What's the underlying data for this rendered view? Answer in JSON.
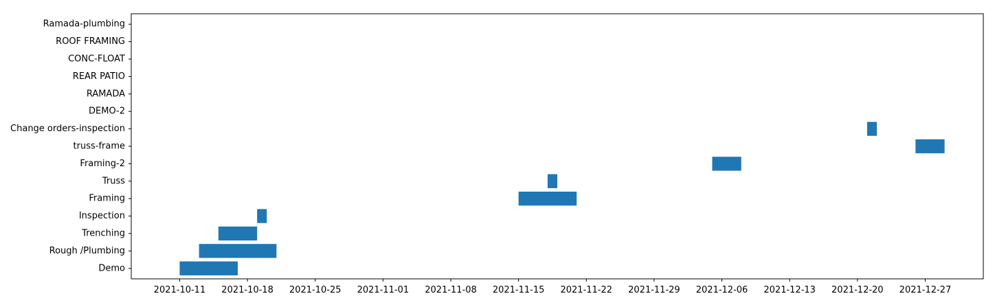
{
  "chart_data": {
    "type": "gantt",
    "title": "",
    "xlabel": "",
    "ylabel": "",
    "x_axis_type": "date",
    "xlim": [
      "2021-10-06",
      "2022-01-02"
    ],
    "x_ticks": [
      "2021-10-11",
      "2021-10-18",
      "2021-10-25",
      "2021-11-01",
      "2021-11-08",
      "2021-11-15",
      "2021-11-22",
      "2021-11-29",
      "2021-12-06",
      "2021-12-13",
      "2021-12-20",
      "2021-12-27"
    ],
    "categories": [
      "Demo",
      "Rough /Plumbing",
      "Trenching",
      "Inspection",
      "Framing",
      "Truss",
      "Framing-2",
      "truss-frame",
      "Change orders-inspection",
      "DEMO-2",
      "RAMADA",
      "REAR PATIO",
      "CONC-FLOAT",
      "ROOF FRAMING",
      "Ramada-plumbing"
    ],
    "tasks": [
      {
        "name": "Demo",
        "start": "2021-10-11",
        "end": "2021-10-17"
      },
      {
        "name": "Rough /Plumbing",
        "start": "2021-10-13",
        "end": "2021-10-21"
      },
      {
        "name": "Trenching",
        "start": "2021-10-15",
        "end": "2021-10-19"
      },
      {
        "name": "Inspection",
        "start": "2021-10-19",
        "end": "2021-10-20"
      },
      {
        "name": "Framing",
        "start": "2021-11-15",
        "end": "2021-11-21"
      },
      {
        "name": "Truss",
        "start": "2021-11-18",
        "end": "2021-11-19"
      },
      {
        "name": "Framing-2",
        "start": "2021-12-05",
        "end": "2021-12-08"
      },
      {
        "name": "truss-frame",
        "start": "2021-12-26",
        "end": "2021-12-29"
      },
      {
        "name": "Change orders-inspection",
        "start": "2021-12-21",
        "end": "2021-12-22"
      }
    ],
    "grid": false,
    "bar_color": "#1f77b4"
  }
}
